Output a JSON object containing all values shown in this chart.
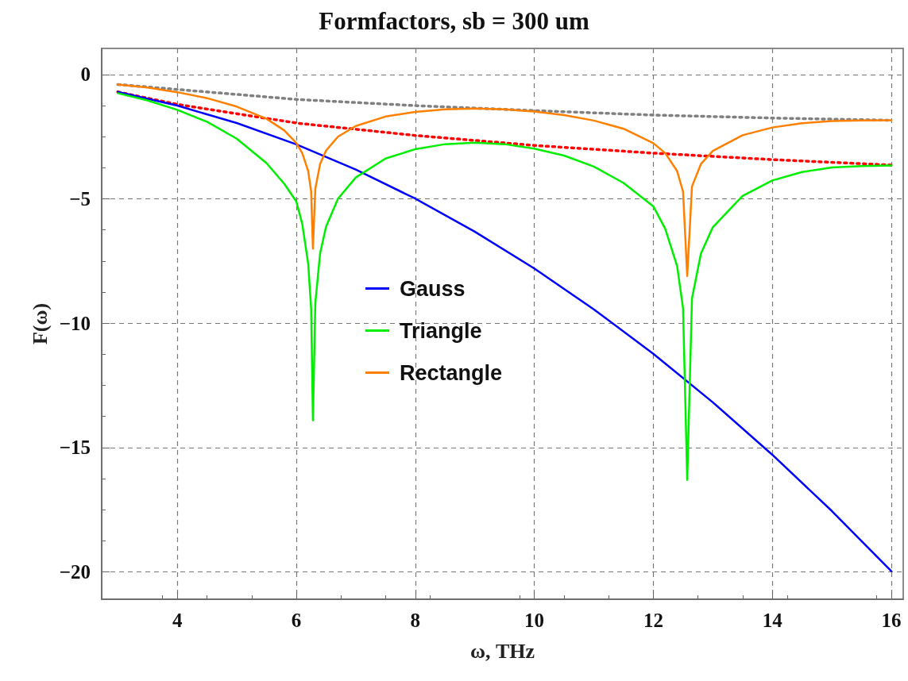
{
  "chart_data": {
    "type": "line",
    "title": "Formfactors, sb = 300 um",
    "xlabel": "ω, THz",
    "ylabel": "F(ω)",
    "xlim": [
      2.73,
      16.2
    ],
    "xticks": [
      4,
      6,
      8,
      10,
      12,
      14,
      16
    ],
    "ylim": [
      -21.1,
      1.05
    ],
    "yticks": [
      0,
      -5,
      -10,
      -15,
      -20
    ],
    "grid": true,
    "legend": "center",
    "marker": "none",
    "line_style": "solid",
    "series": [
      {
        "name": "Gauss",
        "color": "#0000ff",
        "x": [
          3,
          4,
          5,
          6,
          7,
          8,
          9,
          10,
          11,
          12,
          13,
          14,
          15,
          16
        ],
        "values": [
          -0.7,
          -1.25,
          -1.95,
          -2.81,
          -3.82,
          -4.99,
          -6.32,
          -7.8,
          -9.44,
          -11.23,
          -13.18,
          -15.29,
          -17.55,
          -19.97
        ]
      },
      {
        "name": "Triangle",
        "color": "#00ee00",
        "x": [
          3,
          3.5,
          4,
          4.5,
          5,
          5.5,
          5.8,
          6,
          6.1,
          6.2,
          6.25,
          6.28,
          6.32,
          6.4,
          6.5,
          6.7,
          7,
          7.5,
          8,
          8.5,
          9,
          9.5,
          10,
          10.5,
          11,
          11.5,
          12,
          12.2,
          12.4,
          12.5,
          12.57,
          12.65,
          12.8,
          13,
          13.5,
          14,
          14.5,
          15,
          15.5,
          16
        ],
        "values": [
          -0.75,
          -1.04,
          -1.42,
          -1.9,
          -2.58,
          -3.56,
          -4.4,
          -5.1,
          -6.0,
          -7.6,
          -9.4,
          -13.9,
          -9.2,
          -7.2,
          -6.12,
          -5.0,
          -4.14,
          -3.38,
          -3.0,
          -2.8,
          -2.74,
          -2.8,
          -2.98,
          -3.26,
          -3.7,
          -4.36,
          -5.3,
          -6.2,
          -7.7,
          -9.4,
          -16.3,
          -9.0,
          -7.2,
          -6.14,
          -4.88,
          -4.26,
          -3.92,
          -3.74,
          -3.68,
          -3.66
        ]
      },
      {
        "name": "Rectangle",
        "color": "#ff8000",
        "x": [
          3,
          3.5,
          4,
          4.5,
          5,
          5.5,
          5.8,
          6,
          6.1,
          6.2,
          6.25,
          6.28,
          6.32,
          6.4,
          6.5,
          6.7,
          7,
          7.5,
          8,
          8.5,
          9,
          9.5,
          10,
          10.5,
          11,
          11.5,
          12,
          12.2,
          12.4,
          12.5,
          12.57,
          12.65,
          12.8,
          13,
          13.5,
          14,
          14.5,
          15,
          15.5,
          16
        ],
        "values": [
          -0.4,
          -0.52,
          -0.71,
          -0.95,
          -1.29,
          -1.78,
          -2.25,
          -2.75,
          -3.16,
          -3.88,
          -4.7,
          -7.0,
          -4.6,
          -3.6,
          -3.06,
          -2.5,
          -2.07,
          -1.69,
          -1.5,
          -1.4,
          -1.37,
          -1.4,
          -1.49,
          -1.63,
          -1.85,
          -2.18,
          -2.76,
          -3.16,
          -3.88,
          -4.71,
          -8.1,
          -4.5,
          -3.6,
          -3.07,
          -2.44,
          -2.13,
          -1.96,
          -1.87,
          -1.85,
          -1.84
        ]
      },
      {
        "color": "#808080",
        "line_style": "dotted",
        "x": [
          3,
          4,
          6,
          8,
          10,
          12,
          14,
          16
        ],
        "values": [
          -0.4,
          -0.6,
          -1.0,
          -1.25,
          -1.45,
          -1.63,
          -1.75,
          -1.84
        ]
      },
      {
        "color": "#ff0000",
        "line_style": "dotted",
        "x": [
          3,
          4,
          6,
          8,
          10,
          12,
          14,
          16
        ],
        "values": [
          -0.7,
          -1.2,
          -1.95,
          -2.45,
          -2.85,
          -3.16,
          -3.42,
          -3.64
        ]
      }
    ]
  }
}
